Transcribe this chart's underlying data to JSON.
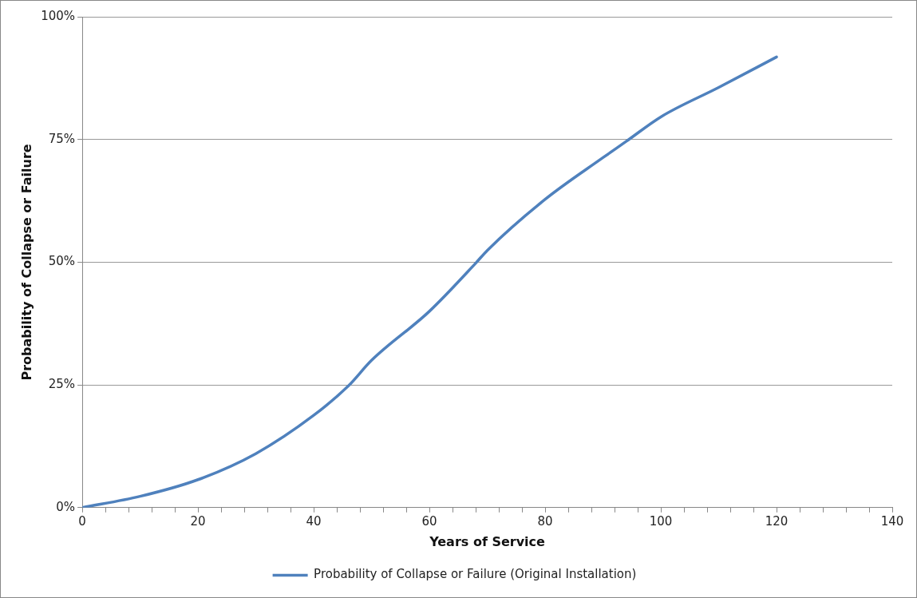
{
  "chart_data": {
    "type": "line",
    "xlabel": "Years of Service",
    "ylabel": "Probability of Collapse or Failure",
    "x": [
      0,
      10,
      20,
      30,
      40,
      46,
      50,
      60,
      68,
      70,
      80,
      90,
      94,
      100,
      110,
      120
    ],
    "series": [
      {
        "name": "Probability of Collapse or Failure (Original Installation)",
        "color": "#4f81bd",
        "values": [
          0,
          2.3,
          5.7,
          11,
          18.8,
          24.8,
          30,
          40,
          49.8,
          52.4,
          62.8,
          71.3,
          74.6,
          79.6,
          85.6,
          91.8
        ]
      }
    ],
    "xlim": [
      0,
      140
    ],
    "xticks": [
      0,
      {
        "value": 4,
        "label": null
      },
      {
        "value": 8,
        "label": null
      },
      {
        "value": 12,
        "label": null
      },
      {
        "value": 16,
        "label": null
      },
      20,
      {
        "value": 24,
        "label": null
      },
      {
        "value": 28,
        "label": null
      },
      {
        "value": 32,
        "label": null
      },
      {
        "value": 36,
        "label": null
      },
      40,
      {
        "value": 44,
        "label": null
      },
      {
        "value": 48,
        "label": null
      },
      {
        "value": 52,
        "label": null
      },
      {
        "value": 56,
        "label": null
      },
      60,
      {
        "value": 64,
        "label": null
      },
      {
        "value": 68,
        "label": null
      },
      {
        "value": 72,
        "label": null
      },
      {
        "value": 76,
        "label": null
      },
      80,
      {
        "value": 84,
        "label": null
      },
      {
        "value": 88,
        "label": null
      },
      {
        "value": 92,
        "label": null
      },
      {
        "value": 96,
        "label": null
      },
      100,
      {
        "value": 104,
        "label": null
      },
      {
        "value": 108,
        "label": null
      },
      {
        "value": 112,
        "label": null
      },
      {
        "value": 116,
        "label": null
      },
      120,
      {
        "value": 124,
        "label": null
      },
      {
        "value": 128,
        "label": null
      },
      {
        "value": 132,
        "label": null
      },
      {
        "value": 136,
        "label": null
      },
      140
    ],
    "ylim": [
      0,
      100
    ],
    "yticks": [
      {
        "value": 0,
        "label": "0%"
      },
      {
        "value": 25,
        "label": "25%"
      },
      {
        "value": 50,
        "label": "50%"
      },
      {
        "value": 75,
        "label": "75%"
      },
      {
        "value": 100,
        "label": "100%"
      }
    ],
    "grid": "y",
    "legend": "bottom",
    "marker": "none",
    "line_style": "solid"
  }
}
